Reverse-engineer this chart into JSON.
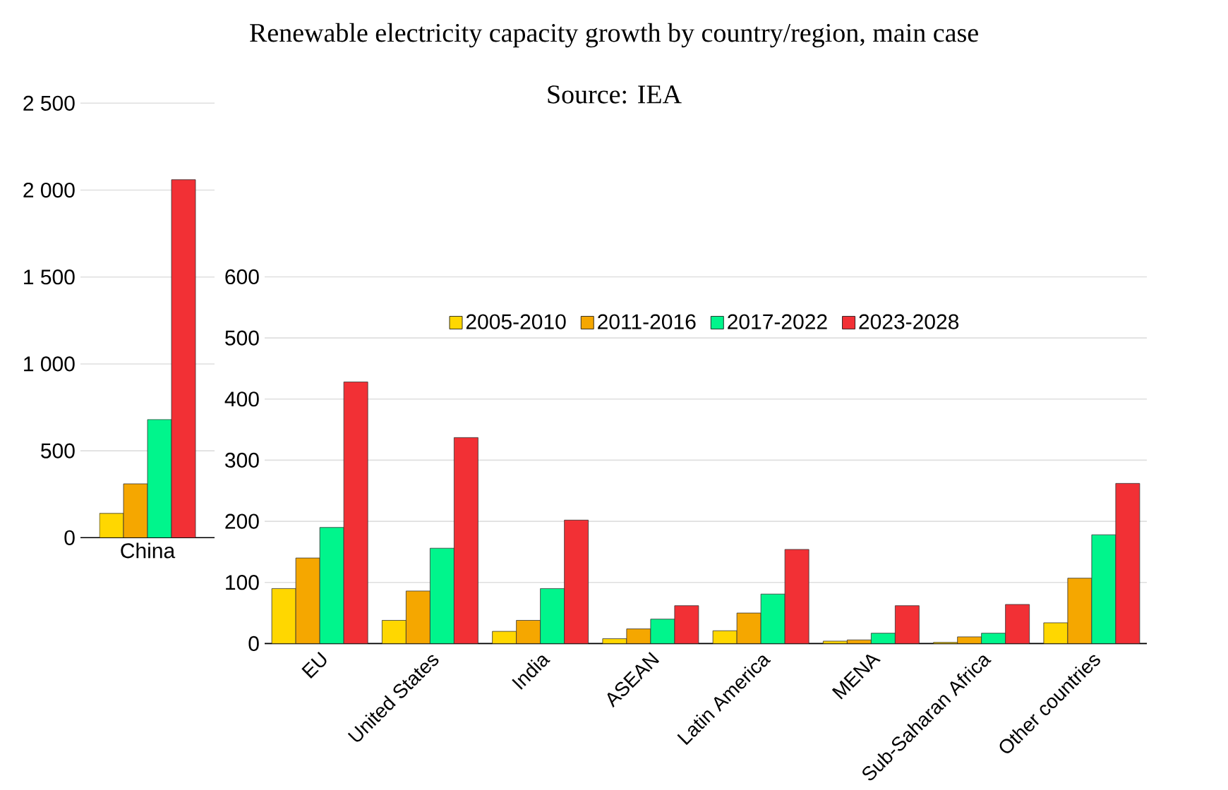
{
  "chart_data": [
    {
      "type": "bar",
      "categories": [
        "China"
      ],
      "series": [
        {
          "color": "#ffd700",
          "values": [
            140
          ]
        },
        {
          "color": "#f5a700",
          "values": [
            310
          ]
        },
        {
          "color": "#00f58c",
          "values": [
            680
          ]
        },
        {
          "color": "#f23035",
          "values": [
            2060
          ]
        }
      ],
      "ylim": [
        0,
        2500
      ],
      "yticks": [
        0,
        500,
        {
          "value": 1000,
          "label": "1 000"
        },
        {
          "value": 1500,
          "label": "1 500"
        },
        {
          "value": 2000,
          "label": "2 000"
        },
        {
          "value": 2500,
          "label": "2 500"
        }
      ],
      "grid": "y"
    },
    {
      "type": "bar",
      "title": "Renewable electricity capacity growth by country/region, main case",
      "annotations": [
        "Source: IEA"
      ],
      "categories": [
        "EU",
        "United States",
        "India",
        "ASEAN",
        "Latin America",
        "MENA",
        "Sub-Saharan Africa",
        "Other countries"
      ],
      "series": [
        {
          "name": "2005-2010",
          "color": "#ffd700",
          "values": [
            90,
            38,
            20,
            8,
            21,
            4,
            2,
            34
          ]
        },
        {
          "name": "2011-2016",
          "color": "#f5a700",
          "values": [
            140,
            86,
            38,
            24,
            50,
            6,
            11,
            107
          ]
        },
        {
          "name": "2017-2022",
          "color": "#00f58c",
          "values": [
            190,
            156,
            90,
            40,
            81,
            17,
            17,
            178
          ]
        },
        {
          "name": "2023-2028",
          "color": "#f23035",
          "values": [
            428,
            337,
            202,
            62,
            154,
            62,
            64,
            262
          ]
        }
      ],
      "ylim": [
        0,
        600
      ],
      "yticks": [
        0,
        100,
        200,
        300,
        400,
        500,
        600
      ],
      "grid": "y",
      "legend": "top"
    }
  ]
}
